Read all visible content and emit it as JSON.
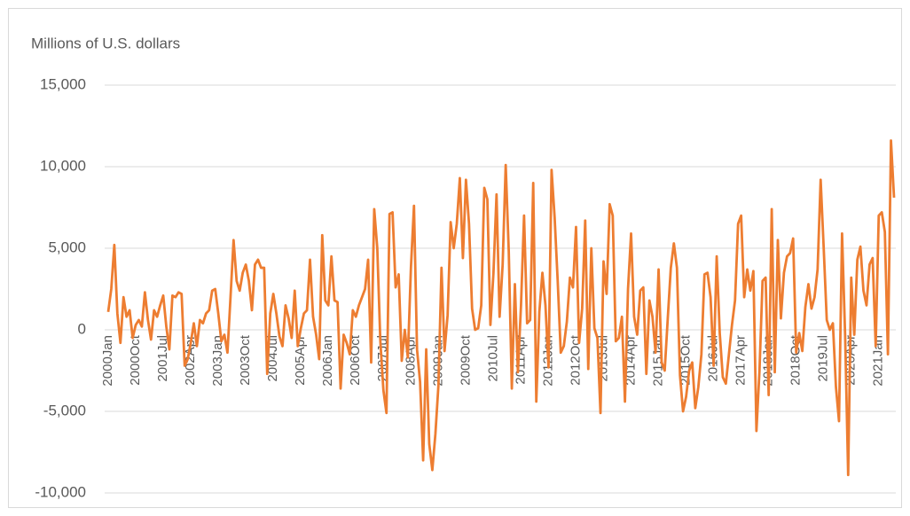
{
  "chart_data": {
    "type": "line",
    "y_axis_label": "Millions of U.S. dollars",
    "categories": [
      "2000Jan",
      null,
      null,
      null,
      null,
      null,
      null,
      null,
      null,
      "2000Oct",
      null,
      null,
      null,
      null,
      null,
      null,
      null,
      null,
      "2001Jul",
      null,
      null,
      null,
      null,
      null,
      null,
      null,
      null,
      "2002Apr",
      null,
      null,
      null,
      null,
      null,
      null,
      null,
      null,
      "2003Jan",
      null,
      null,
      null,
      null,
      null,
      null,
      null,
      null,
      "2003Oct",
      null,
      null,
      null,
      null,
      null,
      null,
      null,
      null,
      "2004Jul",
      null,
      null,
      null,
      null,
      null,
      null,
      null,
      null,
      "2005Apr",
      null,
      null,
      null,
      null,
      null,
      null,
      null,
      null,
      "2006Jan",
      null,
      null,
      null,
      null,
      null,
      null,
      null,
      null,
      "2006Oct",
      null,
      null,
      null,
      null,
      null,
      null,
      null,
      null,
      "2007Jul",
      null,
      null,
      null,
      null,
      null,
      null,
      null,
      null,
      "2008Apr",
      null,
      null,
      null,
      null,
      null,
      null,
      null,
      null,
      "2009Jan",
      null,
      null,
      null,
      null,
      null,
      null,
      null,
      null,
      "2009Oct",
      null,
      null,
      null,
      null,
      null,
      null,
      null,
      null,
      "2010Jul",
      null,
      null,
      null,
      null,
      null,
      null,
      null,
      null,
      "2011Apr",
      null,
      null,
      null,
      null,
      null,
      null,
      null,
      null,
      "2012Jan",
      null,
      null,
      null,
      null,
      null,
      null,
      null,
      null,
      "2012Oct",
      null,
      null,
      null,
      null,
      null,
      null,
      null,
      null,
      "2013Jul",
      null,
      null,
      null,
      null,
      null,
      null,
      null,
      null,
      "2014Apr",
      null,
      null,
      null,
      null,
      null,
      null,
      null,
      null,
      "2015Jan",
      null,
      null,
      null,
      null,
      null,
      null,
      null,
      null,
      "2015Oct",
      null,
      null,
      null,
      null,
      null,
      null,
      null,
      null,
      "2016Jul",
      null,
      null,
      null,
      null,
      null,
      null,
      null,
      null,
      "2017Apr",
      null,
      null,
      null,
      null,
      null,
      null,
      null,
      null,
      "2018Jan",
      null,
      null,
      null,
      null,
      null,
      null,
      null,
      null,
      "2018Oct",
      null,
      null,
      null,
      null,
      null,
      null,
      null,
      null,
      "2019Jul",
      null,
      null,
      null,
      null,
      null,
      null,
      null,
      null,
      "2020Apr",
      null,
      null,
      null,
      null,
      null,
      null,
      null,
      null,
      "2021Jan",
      null,
      null,
      null,
      null,
      null
    ],
    "values": [
      1100,
      2500,
      5200,
      1000,
      -800,
      2000,
      800,
      1200,
      -500,
      300,
      600,
      200,
      2300,
      600,
      -600,
      1200,
      800,
      1500,
      2100,
      200,
      -1200,
      2100,
      2000,
      2300,
      2200,
      -2200,
      -1800,
      -800,
      400,
      -1000,
      600,
      400,
      1000,
      1200,
      2400,
      2500,
      1000,
      -700,
      -300,
      -1400,
      2000,
      5500,
      3000,
      2400,
      3500,
      4000,
      3000,
      1200,
      4000,
      4300,
      3800,
      3800,
      -2700,
      1000,
      2200,
      1000,
      -400,
      -1000,
      1500,
      700,
      -500,
      2400,
      -1000,
      100,
      1000,
      1200,
      4300,
      800,
      -300,
      -1800,
      5800,
      1800,
      1500,
      4500,
      1800,
      1700,
      -3600,
      -300,
      -800,
      -1500,
      1200,
      800,
      1500,
      2000,
      2500,
      4300,
      -2000,
      7400,
      5000,
      -700,
      -3700,
      -5100,
      7100,
      7200,
      2600,
      3400,
      -1900,
      0,
      -1700,
      3800,
      7600,
      -1200,
      -3200,
      -8000,
      -1200,
      -7000,
      -8600,
      -6400,
      -3400,
      3800,
      -1300,
      900,
      6600,
      5000,
      6500,
      9300,
      4400,
      9200,
      6500,
      1300,
      0,
      100,
      1500,
      8700,
      8000,
      300,
      3500,
      8300,
      800,
      4000,
      10100,
      4800,
      -3600,
      2800,
      -2600,
      1500,
      7000,
      400,
      600,
      9000,
      -4400,
      1100,
      3500,
      1500,
      -2300,
      9800,
      6900,
      3000,
      -1400,
      -1000,
      500,
      3200,
      2600,
      6300,
      -800,
      1300,
      6700,
      -2400,
      5000,
      100,
      -500,
      -5100,
      4200,
      2200,
      7700,
      7000,
      -700,
      -500,
      800,
      -4400,
      2500,
      5900,
      800,
      -300,
      2400,
      2600,
      -2700,
      1800,
      800,
      -1400,
      3700,
      -2000,
      -2500,
      700,
      3800,
      5300,
      3800,
      -2800,
      -5000,
      -4100,
      -2500,
      -2000,
      -4800,
      -3500,
      -1500,
      3400,
      3500,
      2000,
      -2200,
      4500,
      -200,
      -2900,
      -3300,
      -1500,
      300,
      1800,
      6500,
      7000,
      2000,
      3700,
      2400,
      3600,
      -6200,
      -2500,
      3000,
      3200,
      -4000,
      7400,
      -2600,
      5500,
      700,
      3500,
      4500,
      4700,
      5600,
      -1400,
      -200,
      -1300,
      1400,
      2800,
      1300,
      2000,
      3700,
      9200,
      5000,
      600,
      0,
      400,
      -3500,
      -5600,
      5900,
      -300,
      -8900,
      3200,
      -300,
      4300,
      5100,
      2400,
      1500,
      4000,
      4400,
      -1000,
      7000,
      7200,
      6000,
      -1500,
      11600,
      8100
    ],
    "color": "#ed7d31",
    "ylim": [
      -10000,
      15000
    ],
    "yticks": [
      {
        "value": -10000,
        "label": "-10,000"
      },
      {
        "value": -5000,
        "label": "-5,000"
      },
      0,
      {
        "value": 5000,
        "label": "5,000"
      },
      {
        "value": 10000,
        "label": "10,000"
      },
      {
        "value": 15000,
        "label": "15,000"
      }
    ],
    "grid": true
  }
}
